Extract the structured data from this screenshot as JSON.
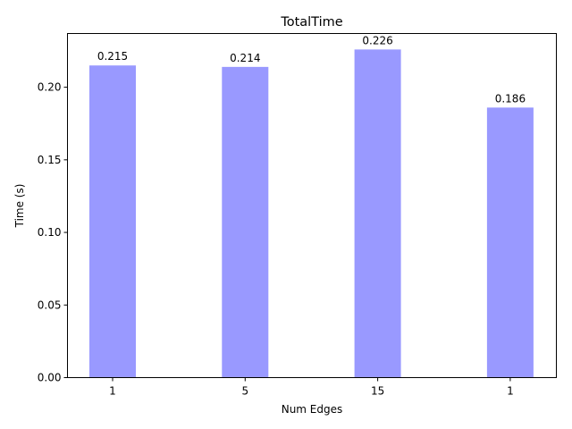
{
  "chart_data": {
    "type": "bar",
    "title": "TotalTime",
    "xlabel": "Num Edges",
    "ylabel": "Time (s)",
    "categories": [
      "1",
      "5",
      "15",
      "1"
    ],
    "values": [
      0.215,
      0.214,
      0.226,
      0.186
    ],
    "value_labels": [
      "0.215",
      "0.214",
      "0.226",
      "0.186"
    ],
    "ylim": [
      0,
      0.237
    ],
    "yticks": [
      0.0,
      0.05,
      0.1,
      0.15,
      0.2
    ],
    "ytick_labels": [
      "0.00",
      "0.05",
      "0.10",
      "0.15",
      "0.20"
    ],
    "bar_color": "#9999ff",
    "grid": false,
    "legend": "none"
  }
}
